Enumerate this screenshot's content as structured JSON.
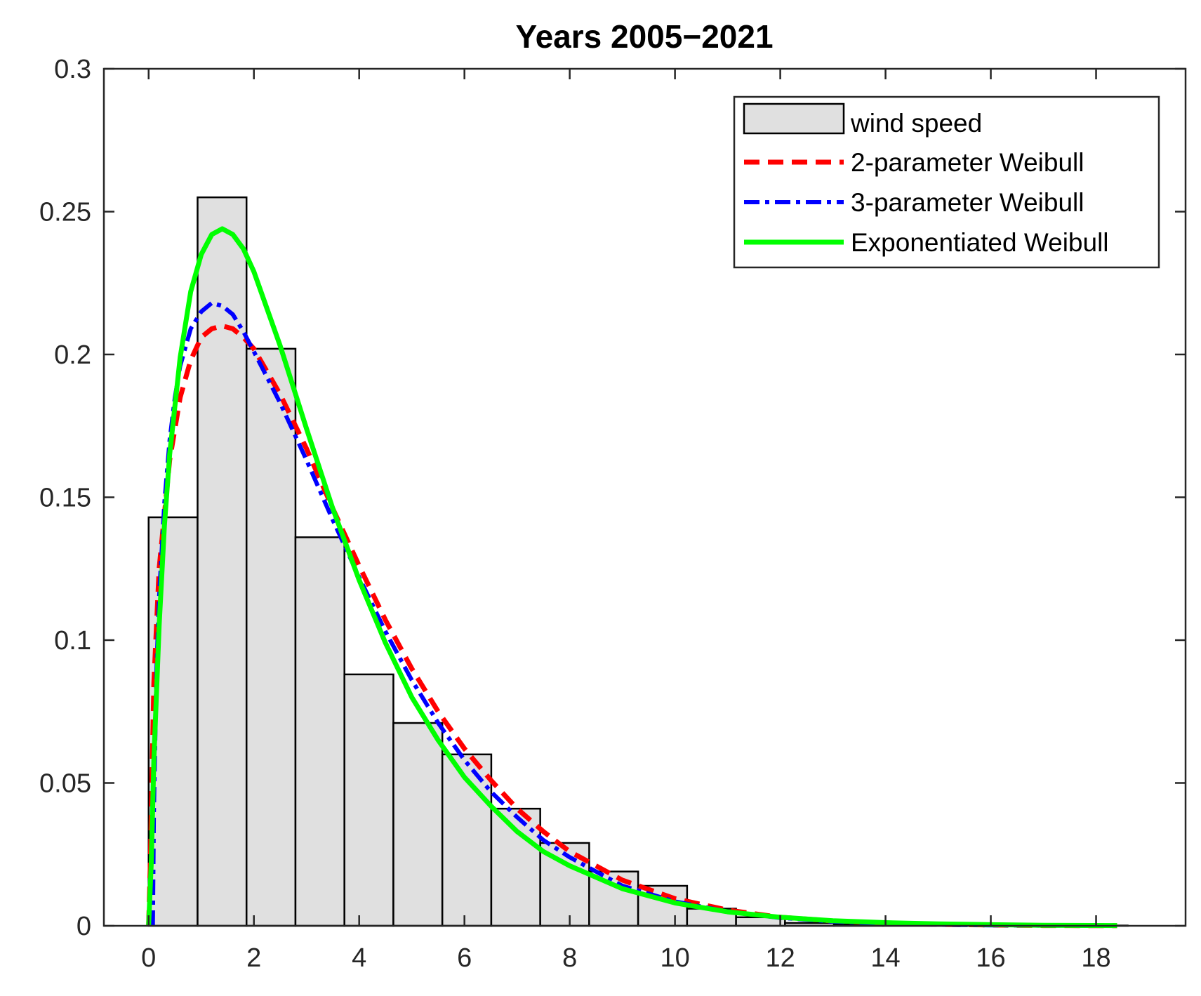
{
  "chart_data": {
    "type": "bar",
    "title": "Years 2005−2021",
    "xlabel": "",
    "ylabel": "",
    "xlim": [
      -0.85,
      19.7
    ],
    "ylim": [
      0,
      0.3
    ],
    "x_ticks": [
      "0",
      "2",
      "4",
      "6",
      "8",
      "10",
      "12",
      "14",
      "16",
      "18"
    ],
    "y_ticks": [
      "0",
      "0.05",
      "0.1",
      "0.15",
      "0.2",
      "0.25",
      "0.3"
    ],
    "grid": false,
    "legend_position": "top-right",
    "histogram": {
      "name": "wind speed",
      "bin_edges": [
        0,
        0.93,
        1.86,
        2.79,
        3.72,
        4.65,
        5.58,
        6.51,
        7.44,
        8.37,
        9.3,
        10.23,
        11.16,
        12.09,
        13.02,
        13.95,
        14.88,
        15.81,
        16.74,
        17.67,
        18.6
      ],
      "values": [
        0.143,
        0.255,
        0.202,
        0.136,
        0.088,
        0.071,
        0.06,
        0.041,
        0.029,
        0.019,
        0.014,
        0.006,
        0.003,
        0.001,
        0.0005,
        0.0003,
        0.0002,
        0.0001,
        0.0001,
        0.0001
      ]
    },
    "series": [
      {
        "name": "2-parameter Weibull",
        "color": "#ff0000",
        "style": "dashed",
        "x": [
          0,
          0.03,
          0.1,
          0.2,
          0.4,
          0.6,
          0.8,
          1.0,
          1.2,
          1.4,
          1.6,
          1.8,
          2.0,
          2.5,
          3.0,
          3.5,
          4.0,
          4.5,
          5.0,
          5.5,
          6.0,
          6.5,
          7.0,
          7.5,
          8.0,
          9.0,
          10.0,
          11.0,
          12.0,
          13.0,
          14.0,
          15.0,
          16.0,
          17.0,
          18.4
        ],
        "y": [
          0,
          0.02,
          0.085,
          0.125,
          0.163,
          0.185,
          0.198,
          0.206,
          0.209,
          0.21,
          0.209,
          0.206,
          0.202,
          0.186,
          0.167,
          0.146,
          0.126,
          0.107,
          0.09,
          0.075,
          0.062,
          0.051,
          0.041,
          0.033,
          0.026,
          0.016,
          0.0095,
          0.0055,
          0.003,
          0.0017,
          0.0009,
          0.0005,
          0.0003,
          0.0001,
          5e-05
        ]
      },
      {
        "name": "3-parameter Weibull",
        "color": "#0000ff",
        "style": "dash-dot",
        "x": [
          0.08,
          0.1,
          0.15,
          0.2,
          0.3,
          0.4,
          0.5,
          0.6,
          0.8,
          1.0,
          1.2,
          1.4,
          1.6,
          1.8,
          2.0,
          2.5,
          3.0,
          3.5,
          4.0,
          4.5,
          5.0,
          5.5,
          6.0,
          6.5,
          7.0,
          7.5,
          8.0,
          9.0,
          10.0,
          11.0,
          12.0,
          13.0,
          14.0,
          15.0,
          16.0,
          17.0,
          18.4
        ],
        "y": [
          0,
          0.04,
          0.09,
          0.115,
          0.148,
          0.17,
          0.185,
          0.196,
          0.209,
          0.215,
          0.218,
          0.217,
          0.214,
          0.208,
          0.201,
          0.183,
          0.163,
          0.142,
          0.122,
          0.103,
          0.086,
          0.071,
          0.058,
          0.047,
          0.038,
          0.03,
          0.024,
          0.014,
          0.0085,
          0.005,
          0.0028,
          0.0015,
          0.0008,
          0.0004,
          0.0002,
          0.0001,
          4e-05
        ]
      },
      {
        "name": "Exponentiated Weibull",
        "color": "#00ff00",
        "style": "solid",
        "x": [
          0,
          0.05,
          0.1,
          0.2,
          0.3,
          0.4,
          0.6,
          0.8,
          1.0,
          1.2,
          1.4,
          1.6,
          1.8,
          2.0,
          2.5,
          3.0,
          3.5,
          4.0,
          4.5,
          5.0,
          5.5,
          6.0,
          6.5,
          7.0,
          7.5,
          8.0,
          9.0,
          10.0,
          11.0,
          12.0,
          13.0,
          14.0,
          15.0,
          16.0,
          17.0,
          18.4
        ],
        "y": [
          0,
          0.022,
          0.058,
          0.105,
          0.14,
          0.165,
          0.199,
          0.222,
          0.235,
          0.242,
          0.244,
          0.242,
          0.237,
          0.229,
          0.203,
          0.174,
          0.146,
          0.121,
          0.099,
          0.08,
          0.065,
          0.052,
          0.042,
          0.033,
          0.026,
          0.021,
          0.013,
          0.008,
          0.0049,
          0.003,
          0.0018,
          0.0011,
          0.0007,
          0.0004,
          0.0002,
          0.0001
        ]
      }
    ]
  }
}
